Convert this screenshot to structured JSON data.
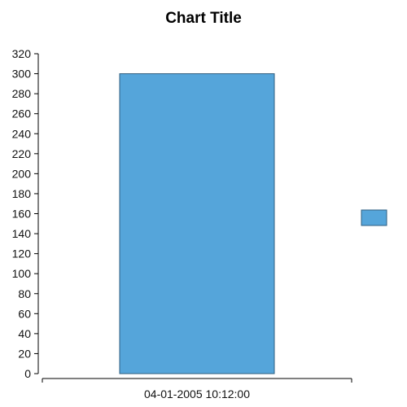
{
  "chart_data": {
    "type": "bar",
    "title": "Chart Title",
    "categories": [
      "04-01-2005 10:12:00"
    ],
    "series": [
      {
        "values": [
          300
        ],
        "color": "#55a5da"
      }
    ],
    "ylim": [
      0,
      320
    ],
    "yticks": [
      0,
      20,
      40,
      60,
      80,
      100,
      120,
      140,
      160,
      180,
      200,
      220,
      240,
      260,
      280,
      300,
      320
    ],
    "xlabel": "",
    "ylabel": "",
    "grid": false,
    "legend": "right"
  }
}
